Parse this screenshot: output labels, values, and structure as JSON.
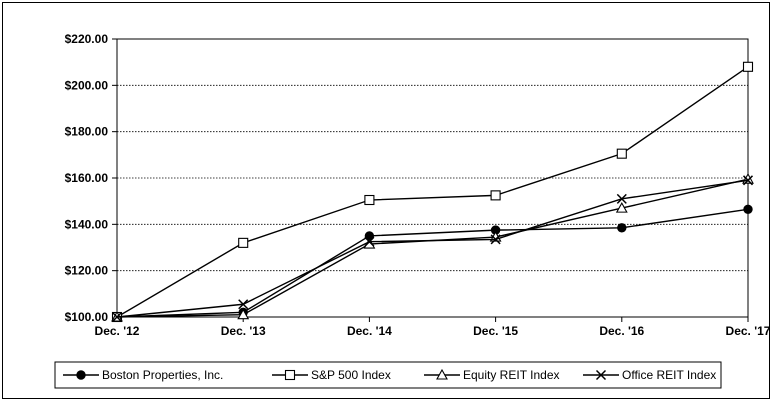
{
  "chart_data": {
    "type": "line",
    "title": "",
    "xlabel": "",
    "ylabel": "",
    "categories": [
      "Dec. '12",
      "Dec. '13",
      "Dec. '14",
      "Dec. '15",
      "Dec. '16",
      "Dec. '17"
    ],
    "ylim": [
      100,
      220
    ],
    "yticks": [
      100,
      120,
      140,
      160,
      180,
      200,
      220
    ],
    "ytick_labels": [
      "$100.00",
      "$120.00",
      "$140.00",
      "$160.00",
      "$180.00",
      "$200.00",
      "$220.00"
    ],
    "grid": "horizontal-dotted",
    "legend_position": "bottom",
    "series": [
      {
        "name": "Boston Properties, Inc.",
        "marker": "filled-circle",
        "values": [
          100,
          102,
          135,
          137.5,
          138.5,
          146.5
        ]
      },
      {
        "name": "S&P 500 Index",
        "marker": "open-square",
        "values": [
          100,
          132,
          150.5,
          152.5,
          170.5,
          208
        ]
      },
      {
        "name": "Equity REIT Index",
        "marker": "open-triangle",
        "values": [
          100,
          101,
          131.5,
          134.5,
          147,
          159.5
        ]
      },
      {
        "name": "Office REIT Index",
        "marker": "x",
        "values": [
          100,
          105.5,
          132.5,
          133.5,
          151,
          159
        ]
      }
    ]
  }
}
